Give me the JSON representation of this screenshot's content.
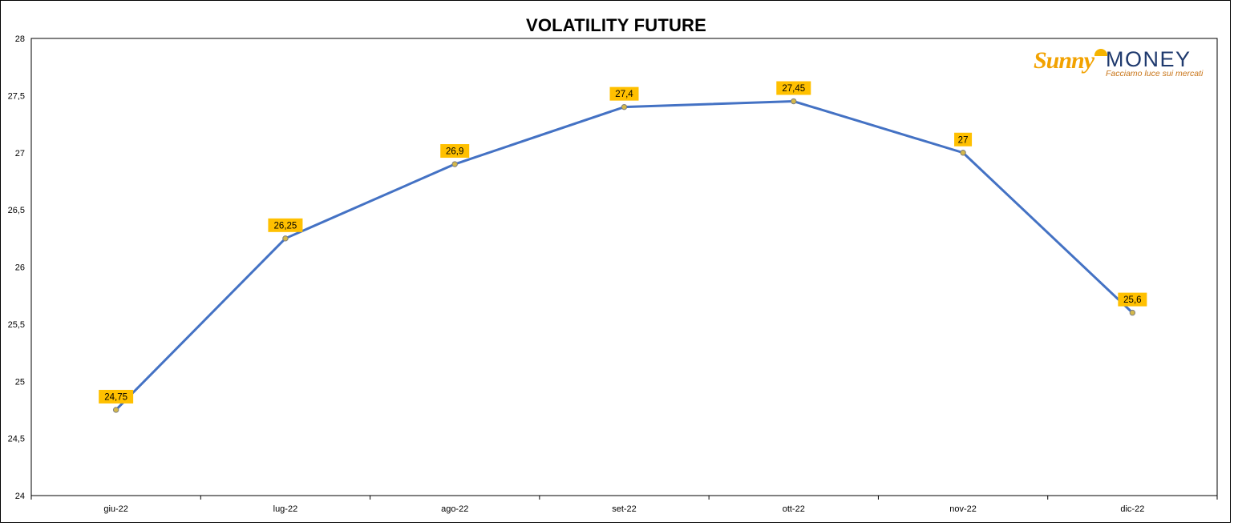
{
  "chart_data": {
    "type": "line",
    "title": "VOLATILITY FUTURE",
    "categories": [
      "giu-22",
      "lug-22",
      "ago-22",
      "set-22",
      "ott-22",
      "nov-22",
      "dic-22"
    ],
    "values": [
      24.75,
      26.25,
      26.9,
      27.4,
      27.45,
      27,
      25.6
    ],
    "data_labels": [
      "24,75",
      "26,25",
      "26,9",
      "27,4",
      "27,45",
      "27",
      "25,6"
    ],
    "ylim": [
      24,
      28
    ],
    "yticks": [
      24,
      24.5,
      25,
      25.5,
      26,
      26.5,
      27,
      27.5,
      28
    ],
    "ytick_labels": [
      "24",
      "24,5",
      "25",
      "25,5",
      "26",
      "26,5",
      "27",
      "27,5",
      "28"
    ],
    "xlabel": "",
    "ylabel": "",
    "grid": false,
    "legend": "none",
    "colors": {
      "line": "#4472c4",
      "marker_fill": "#d4b84a",
      "marker_stroke": "#7f7f7f",
      "label_bg": "#ffc000",
      "axis": "#000000"
    }
  },
  "logo": {
    "brand_first": "Sunny",
    "brand_second": "MONEY",
    "tagline": "Facciamo luce sui mercati"
  }
}
